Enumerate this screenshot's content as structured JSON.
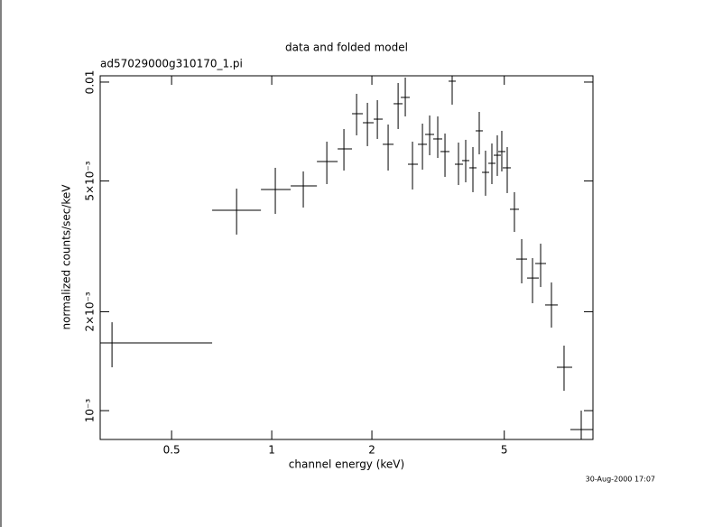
{
  "chart_data": {
    "type": "errorbar",
    "log_x": true,
    "log_y": true,
    "color": "#000000",
    "title": "data and folded model",
    "subtitle": "ad57029000g310170_1.pi",
    "x_label": "channel energy (keV)",
    "y_label": "normalized counts/sec/keV",
    "annotation": "30-Aug-2000 17:07",
    "xlim": [
      0.305,
      9.238
    ],
    "ylim": [
      0.000817,
      0.01045
    ],
    "xticks": [
      0.5,
      1,
      2,
      5
    ],
    "yticks": [
      {
        "value": 0.01,
        "label": "0.01"
      },
      {
        "value": 0.005,
        "label": "5×10⁻³"
      },
      {
        "value": 0.002,
        "label": "2×10⁻³"
      },
      {
        "value": 0.001,
        "label": "10⁻³"
      }
    ],
    "x": [
      0.331,
      0.784,
      1.025,
      1.244,
      1.464,
      1.648,
      1.799,
      1.939,
      2.077,
      2.238,
      2.398,
      2.52,
      2.649,
      2.838,
      2.983,
      3.155,
      3.317,
      3.486,
      3.642,
      3.829,
      4.025,
      4.205,
      4.392,
      4.589,
      4.764,
      4.915,
      5.103,
      5.364,
      5.641,
      6.08,
      6.431,
      6.931,
      7.563,
      8.517
    ],
    "x_lo": [
      0.305,
      0.662,
      0.928,
      1.14,
      1.367,
      1.578,
      1.743,
      1.879,
      2.025,
      2.156,
      2.324,
      2.443,
      2.567,
      2.75,
      2.891,
      3.058,
      3.215,
      3.401,
      3.552,
      3.734,
      3.926,
      4.102,
      4.285,
      4.477,
      4.647,
      4.794,
      4.946,
      5.2,
      5.433,
      5.856,
      6.195,
      6.634,
      7.195,
      7.9
    ],
    "x_hi": [
      0.662,
      0.928,
      1.14,
      1.367,
      1.578,
      1.743,
      1.879,
      2.025,
      2.156,
      2.324,
      2.474,
      2.6,
      2.75,
      2.928,
      3.077,
      3.255,
      3.422,
      3.574,
      3.758,
      3.926,
      4.127,
      4.311,
      4.504,
      4.705,
      4.885,
      5.04,
      5.232,
      5.535,
      5.856,
      6.351,
      6.676,
      7.24,
      8.0,
      9.238
    ],
    "y": [
      0.001607,
      0.004074,
      0.00471,
      0.00483,
      0.005732,
      0.006263,
      0.008013,
      0.007521,
      0.007713,
      0.006465,
      0.008592,
      0.008981,
      0.005623,
      0.006465,
      0.006929,
      0.006713,
      0.006145,
      0.010063,
      0.005623,
      0.005768,
      0.005483,
      0.007106,
      0.005312,
      0.005659,
      0.005989,
      0.006145,
      0.005483,
      0.0041,
      0.002893,
      0.002533,
      0.002804,
      0.002097,
      0.001355,
      0.000876
    ],
    "y_lo": [
      0.001355,
      0.003434,
      0.003971,
      0.004151,
      0.004892,
      0.00538,
      0.006885,
      0.006383,
      0.006713,
      0.00538,
      0.007197,
      0.00786,
      0.00471,
      0.005414,
      0.005989,
      0.005876,
      0.005146,
      0.008537,
      0.004861,
      0.004954,
      0.004623,
      0.006027,
      0.004508,
      0.004892,
      0.00518,
      0.005346,
      0.004594,
      0.003499,
      0.00244,
      0.002123,
      0.002378,
      0.001789,
      0.001149,
      0.000817
    ],
    "y_hi": [
      0.001858,
      0.004739,
      0.005483,
      0.005346,
      0.006587,
      0.007197,
      0.00921,
      0.008646,
      0.008813,
      0.007427,
      0.009937,
      0.010321,
      0.006587,
      0.007474,
      0.007913,
      0.00786,
      0.006973,
      0.01072,
      0.006545,
      0.006672,
      0.006343,
      0.008115,
      0.006184,
      0.006504,
      0.006885,
      0.007106,
      0.006343,
      0.004623,
      0.003327,
      0.002912,
      0.003222,
      0.002455,
      0.001577,
      0.001
    ]
  }
}
